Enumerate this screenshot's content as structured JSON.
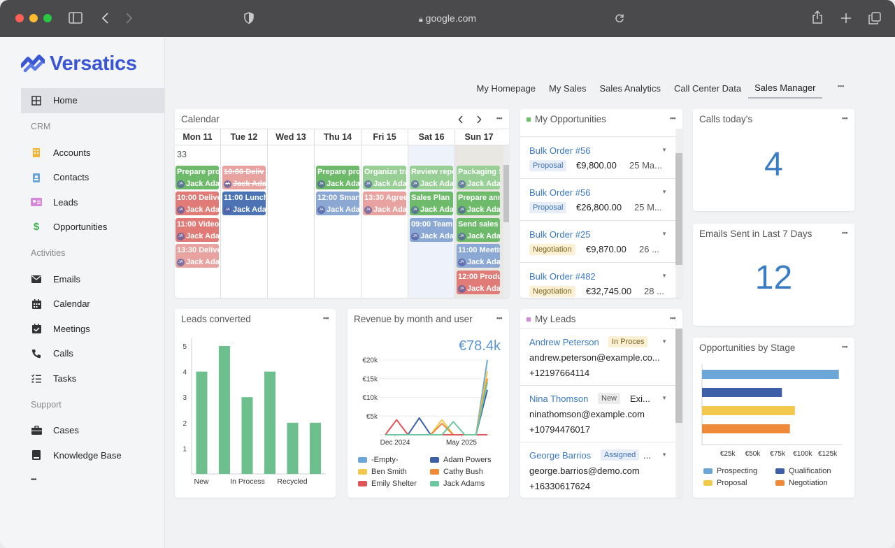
{
  "browser": {
    "url": "google.com"
  },
  "brand": {
    "name": "Versatics",
    "color": "#3a56d4"
  },
  "nav": {
    "home": "Home",
    "crm_section": "CRM",
    "accounts": "Accounts",
    "contacts": "Contacts",
    "leads": "Leads",
    "opportunities": "Opportunities",
    "activities_section": "Activities",
    "emails": "Emails",
    "calendar": "Calendar",
    "meetings": "Meetings",
    "calls": "Calls",
    "tasks": "Tasks",
    "support_section": "Support",
    "cases": "Cases",
    "knowledge_base": "Knowledge Base",
    "more": "•••"
  },
  "tabs": [
    "My Homepage",
    "My Sales",
    "Sales Analytics",
    "Call Center Data",
    "Sales Manager"
  ],
  "tabs_more": "•••",
  "calendar": {
    "title": "Calendar",
    "days": [
      "Mon 11",
      "Tue 12",
      "Wed 13",
      "Thu 14",
      "Fri 15",
      "Sat 16",
      "Sun 17"
    ],
    "week": "33",
    "user": "Jack Ada",
    "user_initials": "JA",
    "events": {
      "mon": [
        "Prepare pro",
        "10:00 Delive",
        "11:00 Video",
        "13:30 Delive"
      ],
      "tue": [
        "10:00 Deliv",
        "11:00 Lunch"
      ],
      "thu": [
        "Prepare pro",
        "12:00 Smart"
      ],
      "fri": [
        "Organize tra",
        "13:30 Agree"
      ],
      "sat": [
        "Review repo",
        "Sales Plan",
        "09:00 Team"
      ],
      "sun": [
        "Packaging S",
        "Prepare ann",
        "Send sales c",
        "11:00 Meetin",
        "12:00 Produ"
      ]
    }
  },
  "opportunities": {
    "title": "My Opportunities",
    "items": [
      {
        "name": "Bulk Order #56",
        "stage": "Proposal",
        "amount": "€9,800.00",
        "date": "25 Ma..."
      },
      {
        "name": "Bulk Order #56",
        "stage": "Proposal",
        "amount": "€26,800.00",
        "date": "25 M..."
      },
      {
        "name": "Bulk Order #25",
        "stage": "Negotiation",
        "amount": "€9,870.00",
        "date": "26 ..."
      },
      {
        "name": "Bulk Order #482",
        "stage": "Negotiation",
        "amount": "€32,745.00",
        "date": "28 ..."
      }
    ]
  },
  "calls": {
    "title": "Calls today's",
    "value": "4"
  },
  "emails_sent": {
    "title": "Emails Sent in Last 7 Days",
    "value": "12"
  },
  "leads_converted": {
    "title": "Leads converted",
    "chart_data": {
      "type": "bar",
      "categories": [
        "New",
        "",
        "In Process",
        "",
        "Recycled",
        ""
      ],
      "category_labels": [
        "New",
        "In Process",
        "Recycled"
      ],
      "values": [
        4,
        5,
        3,
        4,
        2,
        2
      ],
      "ylim": [
        0,
        5.5
      ],
      "yticks": [
        "1",
        "2",
        "3",
        "4",
        "5"
      ],
      "color": "#6dbf8e"
    }
  },
  "revenue": {
    "title": "Revenue by month and user",
    "total": "€78.4k",
    "chart_data": {
      "type": "line",
      "yticks": [
        "€5k",
        "€10k",
        "€15k",
        "€20k"
      ],
      "xticks": [
        "Dec 2024",
        "May 2025"
      ],
      "ylim": [
        0,
        22000
      ],
      "series": [
        {
          "name": "-Empty-",
          "color": "#6aa7d8",
          "values": [
            0,
            0,
            0,
            0,
            0,
            0,
            0,
            0,
            0,
            20000
          ]
        },
        {
          "name": "Adam Powers",
          "color": "#3d5fa8",
          "values": [
            0,
            0,
            0,
            4500,
            0,
            0,
            0,
            0,
            0,
            12000
          ]
        },
        {
          "name": "Ben Smith",
          "color": "#f2c94c",
          "values": [
            0,
            0,
            0,
            0,
            0,
            4000,
            0,
            0,
            0,
            17000
          ]
        },
        {
          "name": "Cathy Bush",
          "color": "#ee8a3a",
          "values": [
            0,
            0,
            0,
            0,
            0,
            3000,
            0,
            0,
            0,
            15000
          ]
        },
        {
          "name": "Emily Shelter",
          "color": "#e0555a",
          "values": [
            0,
            4000,
            0,
            0,
            0,
            0,
            0,
            0,
            0,
            0
          ]
        },
        {
          "name": "Jack Adams",
          "color": "#6dc7a0",
          "values": [
            0,
            0,
            0,
            0,
            0,
            0,
            3500,
            0,
            0,
            14000
          ]
        }
      ]
    }
  },
  "my_leads": {
    "title": "My Leads",
    "items": [
      {
        "name": "Andrew Peterson",
        "status": "In Proces",
        "email": "andrew.peterson@example.co...",
        "phone": "+12197664114"
      },
      {
        "name": "Nina Thomson",
        "status": "New",
        "extra": "Exi...",
        "email": "ninathomson@example.com",
        "phone": "+10794476017"
      },
      {
        "name": "George Barrios",
        "status": "Assigned",
        "extra": "...",
        "email": "george.barrios@demo.com",
        "phone": "+16330617624"
      }
    ]
  },
  "opp_stage": {
    "title": "Opportunities by Stage",
    "chart_data": {
      "type": "bar",
      "orientation": "horizontal",
      "categories": [
        "Prospecting",
        "Qualification",
        "Proposal",
        "Negotiation"
      ],
      "values": [
        137000,
        80000,
        93000,
        88000
      ],
      "colors": [
        "#6aa7d8",
        "#3d5fa8",
        "#f2c94c",
        "#ee8a3a"
      ],
      "xticks": [
        "€25k",
        "€50k",
        "€75k",
        "€100k",
        "€125k"
      ],
      "xlim": [
        0,
        140000
      ]
    }
  }
}
